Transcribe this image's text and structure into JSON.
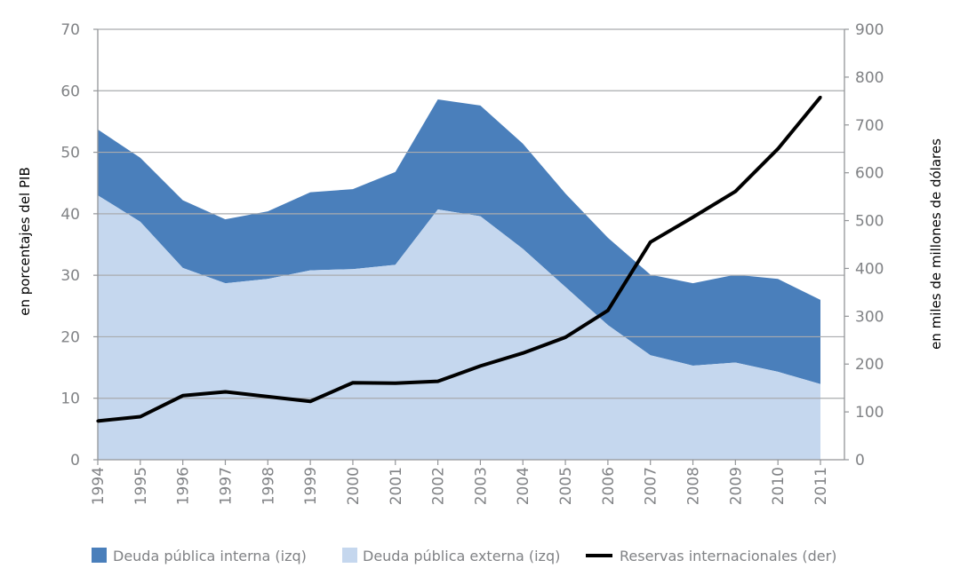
{
  "chart_data": {
    "type": "area",
    "x": [
      "1994",
      "1995",
      "1996",
      "1997",
      "1998",
      "1999",
      "2000",
      "2001",
      "2002",
      "2003",
      "2004",
      "2005",
      "2006",
      "2007",
      "2008",
      "2009",
      "2010",
      "2011"
    ],
    "series": [
      {
        "name": "Deuda pública interna (izq)",
        "kind": "area-stacked",
        "axis": "left",
        "color": "#4a7fbb",
        "values": [
          10.7,
          10.4,
          11.0,
          10.4,
          11.0,
          12.7,
          13.0,
          15.1,
          17.9,
          18.0,
          17.1,
          15.2,
          14.2,
          13.1,
          13.4,
          14.3,
          15.1,
          13.7
        ]
      },
      {
        "name": "Deuda pública externa (izq)",
        "kind": "area-stacked",
        "axis": "left",
        "color": "#c5d7ee",
        "values": [
          43.0,
          38.7,
          31.2,
          28.7,
          29.4,
          30.8,
          31.0,
          31.7,
          40.7,
          39.6,
          34.3,
          28.1,
          21.9,
          17.0,
          15.3,
          15.8,
          14.3,
          12.3
        ]
      },
      {
        "name": "Reservas internacionales (der)",
        "kind": "line",
        "axis": "right",
        "color": "#000000",
        "values": [
          81,
          90,
          134,
          142,
          132,
          122,
          161,
          160,
          164,
          196,
          223,
          256,
          312,
          455,
          507,
          561,
          650,
          758
        ]
      }
    ],
    "left_axis": {
      "label": "en porcentajes del PIB",
      "min": 0,
      "max": 70,
      "ticks": [
        0,
        10,
        20,
        30,
        40,
        50,
        60,
        70
      ]
    },
    "right_axis": {
      "label": "en miles de millones de dólares",
      "min": 0,
      "max": 900,
      "ticks": [
        0,
        100,
        200,
        300,
        400,
        500,
        600,
        700,
        800,
        900
      ]
    },
    "grid": true,
    "legend_position": "bottom"
  }
}
